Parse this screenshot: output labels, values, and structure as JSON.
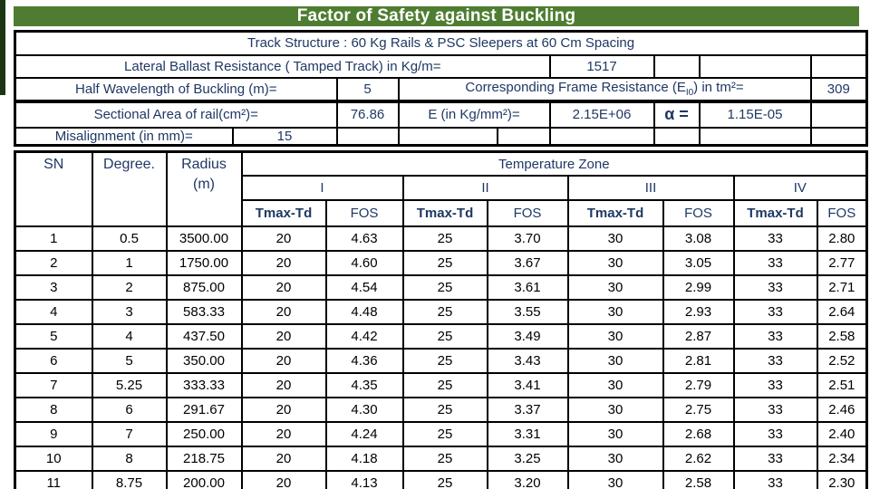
{
  "colors": {
    "title_green": "#4e7d31",
    "navy_text": "#1f3864",
    "border_black": "#000000",
    "edge_strip_dark_green": "#1c3512"
  },
  "title": "Factor of Safety against Buckling",
  "top_table": {
    "track_structure": "Track Structure : 60 Kg Rails & PSC Sleepers at 60 Cm Spacing",
    "lateral_ballast_label": "Lateral Ballast Resistance ( Tamped Track) in Kg/m=",
    "lateral_ballast_value": "1517",
    "half_wavelength_label": "Half Wavelength of Buckling (m)=",
    "half_wavelength_value": "5",
    "frame_resistance_label_html": "Corresponding Frame Resistance (E<sub>I0</sub>) in tm²=",
    "frame_resistance_value": "309",
    "sectional_area_label": "Sectional Area of rail(cm²)=",
    "sectional_area_value": "76.86",
    "e_modulus_label": "E (in Kg/mm²)=",
    "e_modulus_value": "2.15E+06",
    "alpha_label": "α =",
    "alpha_value": "1.15E-05",
    "misalignment_label": "Misalignment (in mm)=",
    "misalignment_value": "15"
  },
  "main_table": {
    "col_sn": "SN",
    "col_degree": "Degree.",
    "col_radius_line1": "Radius",
    "col_radius_line2": "(m)",
    "temperature_zone_label": "Temperature Zone",
    "zones": [
      "I",
      "II",
      "III",
      "IV"
    ],
    "tmax_label": "Tmax-Td",
    "fos_label": "FOS",
    "rows": [
      [
        "1",
        "0.5",
        "3500.00",
        "20",
        "4.63",
        "25",
        "3.70",
        "30",
        "3.08",
        "33",
        "2.80"
      ],
      [
        "2",
        "1",
        "1750.00",
        "20",
        "4.60",
        "25",
        "3.67",
        "30",
        "3.05",
        "33",
        "2.77"
      ],
      [
        "3",
        "2",
        "875.00",
        "20",
        "4.54",
        "25",
        "3.61",
        "30",
        "2.99",
        "33",
        "2.71"
      ],
      [
        "4",
        "3",
        "583.33",
        "20",
        "4.48",
        "25",
        "3.55",
        "30",
        "2.93",
        "33",
        "2.64"
      ],
      [
        "5",
        "4",
        "437.50",
        "20",
        "4.42",
        "25",
        "3.49",
        "30",
        "2.87",
        "33",
        "2.58"
      ],
      [
        "6",
        "5",
        "350.00",
        "20",
        "4.36",
        "25",
        "3.43",
        "30",
        "2.81",
        "33",
        "2.52"
      ],
      [
        "7",
        "5.25",
        "333.33",
        "20",
        "4.35",
        "25",
        "3.41",
        "30",
        "2.79",
        "33",
        "2.51"
      ],
      [
        "8",
        "6",
        "291.67",
        "20",
        "4.30",
        "25",
        "3.37",
        "30",
        "2.75",
        "33",
        "2.46"
      ],
      [
        "9",
        "7",
        "250.00",
        "20",
        "4.24",
        "25",
        "3.31",
        "30",
        "2.68",
        "33",
        "2.40"
      ],
      [
        "10",
        "8",
        "218.75",
        "20",
        "4.18",
        "25",
        "3.25",
        "30",
        "2.62",
        "33",
        "2.34"
      ],
      [
        "11",
        "8.75",
        "200.00",
        "20",
        "4.13",
        "25",
        "3.20",
        "30",
        "2.58",
        "33",
        "2.30"
      ]
    ]
  }
}
